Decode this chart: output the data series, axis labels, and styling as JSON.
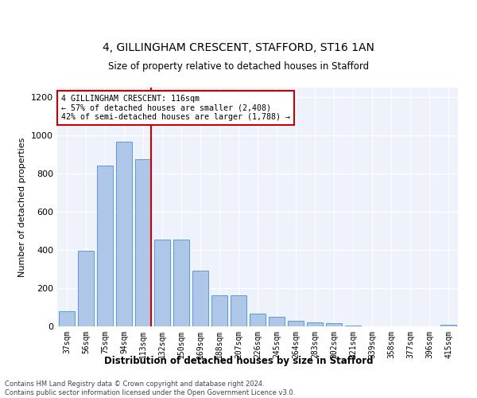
{
  "title": "4, GILLINGHAM CRESCENT, STAFFORD, ST16 1AN",
  "subtitle": "Size of property relative to detached houses in Stafford",
  "xlabel": "Distribution of detached houses by size in Stafford",
  "ylabel": "Number of detached properties",
  "categories": [
    "37sqm",
    "56sqm",
    "75sqm",
    "94sqm",
    "113sqm",
    "132sqm",
    "150sqm",
    "169sqm",
    "188sqm",
    "207sqm",
    "226sqm",
    "245sqm",
    "264sqm",
    "283sqm",
    "302sqm",
    "321sqm",
    "339sqm",
    "358sqm",
    "377sqm",
    "396sqm",
    "415sqm"
  ],
  "values": [
    80,
    395,
    840,
    965,
    875,
    455,
    455,
    290,
    163,
    163,
    65,
    48,
    30,
    22,
    15,
    5,
    2,
    2,
    2,
    2,
    10
  ],
  "bar_color": "#aec6e8",
  "bar_edge_color": "#5b9bd5",
  "vline_x_index": 4,
  "vline_color": "#cc0000",
  "annotation_text": "4 GILLINGHAM CRESCENT: 116sqm\n← 57% of detached houses are smaller (2,408)\n42% of semi-detached houses are larger (1,788) →",
  "annotation_box_color": "white",
  "annotation_box_edge_color": "#cc0000",
  "ylim": [
    0,
    1250
  ],
  "yticks": [
    0,
    200,
    400,
    600,
    800,
    1000,
    1200
  ],
  "bg_color": "#eef2fa",
  "footer_line1": "Contains HM Land Registry data © Crown copyright and database right 2024.",
  "footer_line2": "Contains public sector information licensed under the Open Government Licence v3.0."
}
